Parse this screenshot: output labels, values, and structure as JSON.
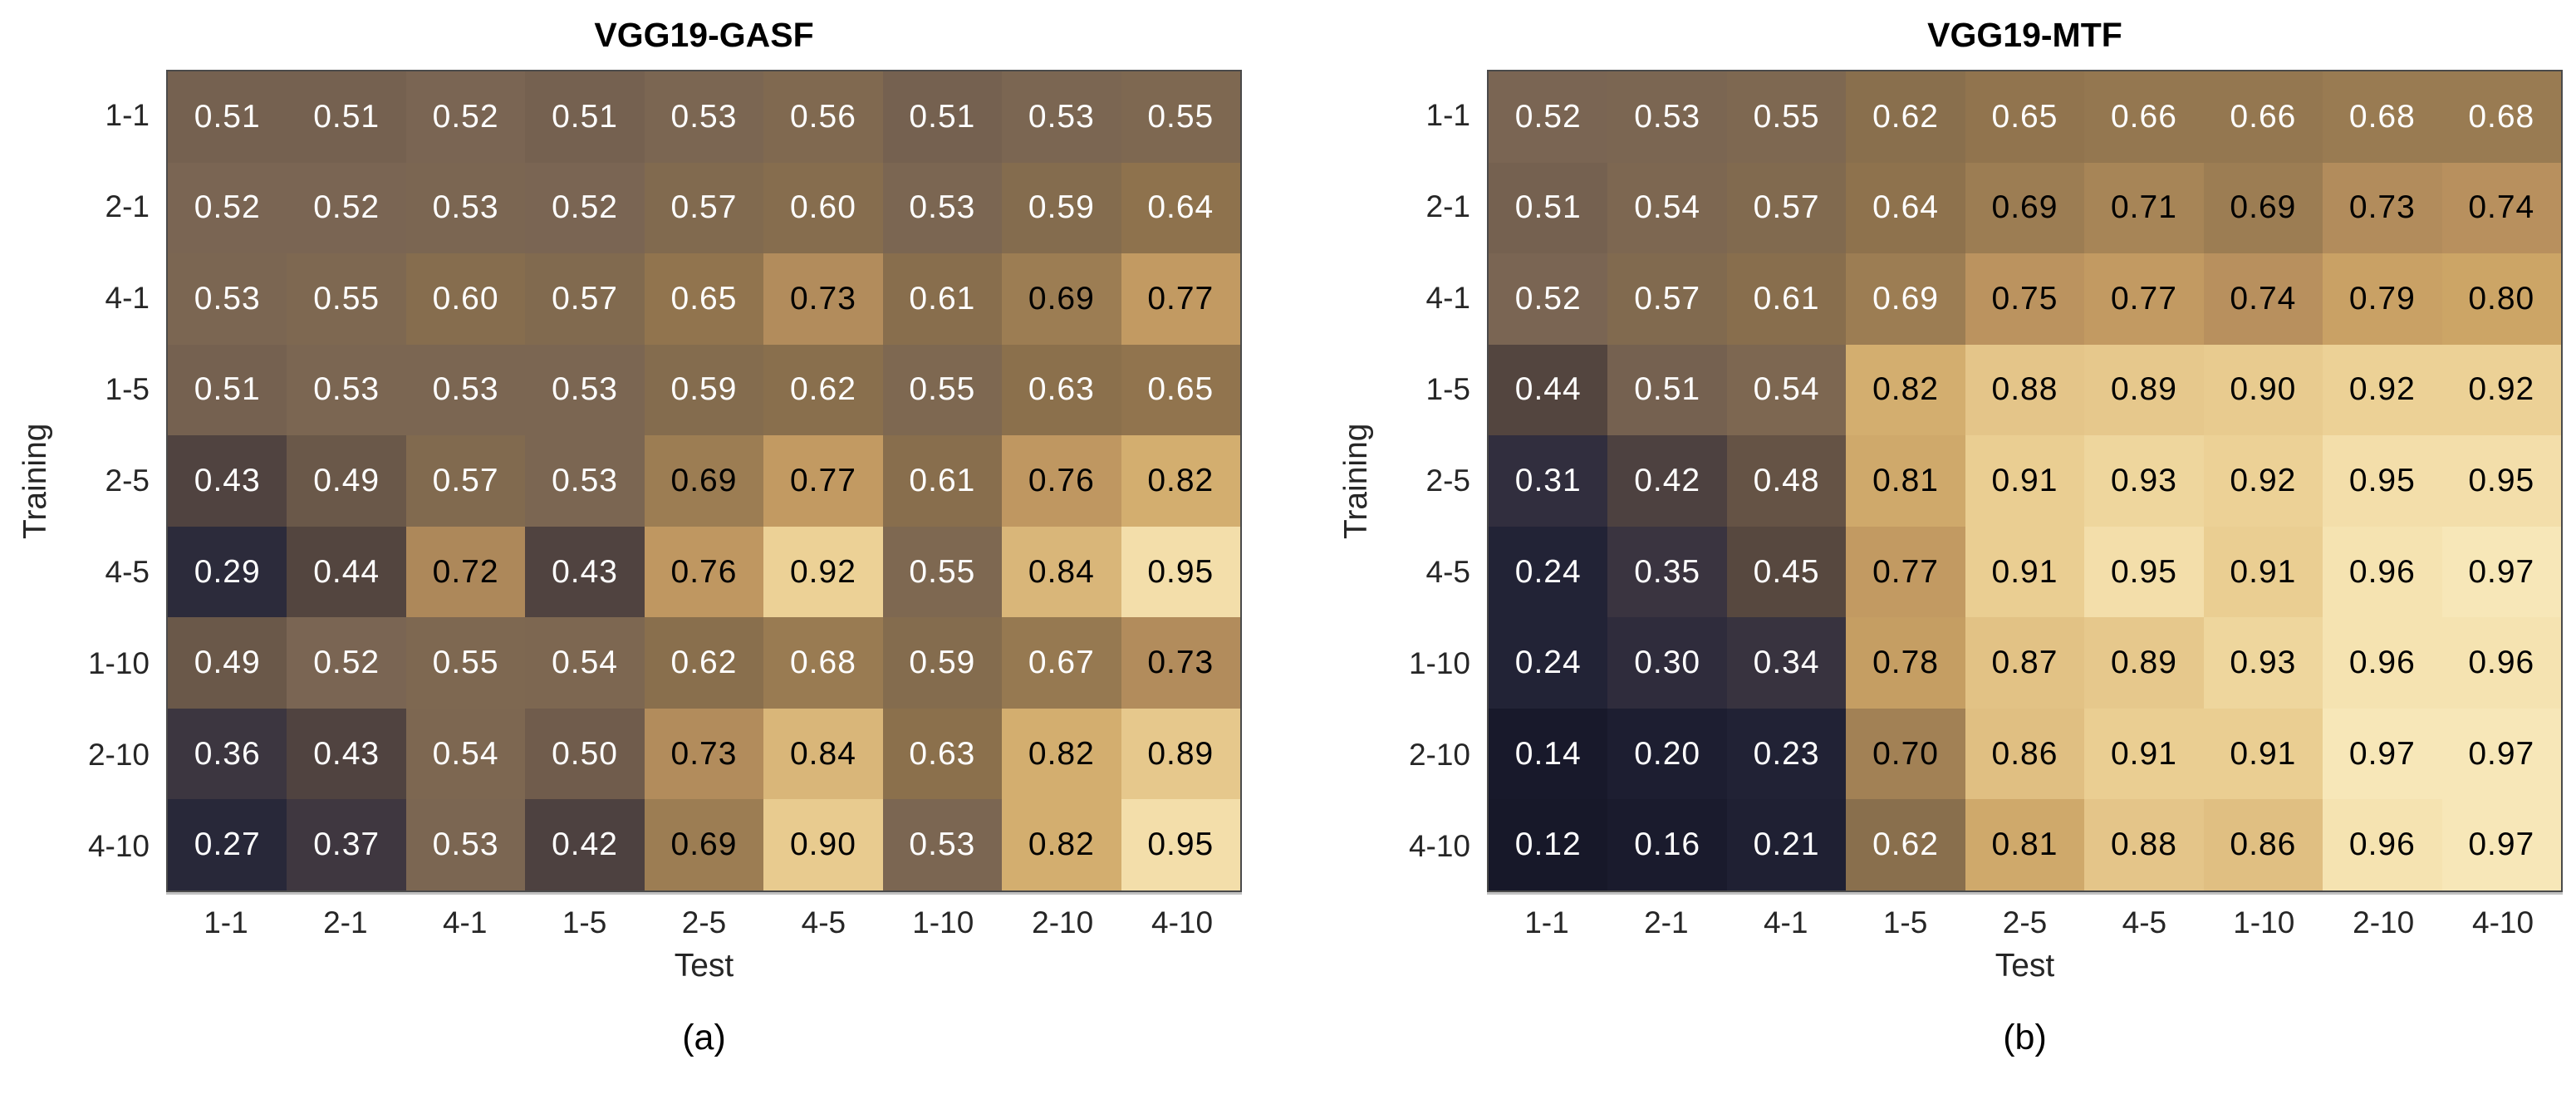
{
  "page": {
    "background": "#ffffff"
  },
  "colors": {
    "axis_text": "#262626",
    "title_text": "#000000",
    "grid_border": "#4a4a4a",
    "cell_text_dark": "#000000",
    "cell_text_light": "#ffffff",
    "colormap_stops": [
      [
        0.0,
        "#171829"
      ],
      [
        0.07,
        "#1b1c2f"
      ],
      [
        0.15,
        "#232437"
      ],
      [
        0.24,
        "#34303f"
      ],
      [
        0.33,
        "#463c41"
      ],
      [
        0.4,
        "#5a4a3e"
      ],
      [
        0.47,
        "#7a6553"
      ],
      [
        0.53,
        "#816a4f"
      ],
      [
        0.6,
        "#8b704c"
      ],
      [
        0.67,
        "#9c7d53"
      ],
      [
        0.73,
        "#b8905e"
      ],
      [
        0.8,
        "#cca566"
      ],
      [
        0.87,
        "#e0bf82"
      ],
      [
        0.94,
        "#ecd195"
      ],
      [
        1.0,
        "#f7e7b8"
      ]
    ]
  },
  "chart_data": [
    {
      "type": "heatmap",
      "title": "VGG19-GASF",
      "caption": "(a)",
      "xlabel": "Test",
      "ylabel": "Training",
      "x_categories": [
        "1-1",
        "2-1",
        "4-1",
        "1-5",
        "2-5",
        "4-5",
        "1-10",
        "2-10",
        "4-10"
      ],
      "y_categories": [
        "1-1",
        "2-1",
        "4-1",
        "1-5",
        "2-5",
        "4-5",
        "1-10",
        "2-10",
        "4-10"
      ],
      "values": [
        [
          0.51,
          0.51,
          0.52,
          0.51,
          0.53,
          0.56,
          0.51,
          0.53,
          0.55
        ],
        [
          0.52,
          0.52,
          0.53,
          0.52,
          0.57,
          0.6,
          0.53,
          0.59,
          0.64
        ],
        [
          0.53,
          0.55,
          0.6,
          0.57,
          0.65,
          0.73,
          0.61,
          0.69,
          0.77
        ],
        [
          0.51,
          0.53,
          0.53,
          0.53,
          0.59,
          0.62,
          0.55,
          0.63,
          0.65
        ],
        [
          0.43,
          0.49,
          0.57,
          0.53,
          0.69,
          0.77,
          0.61,
          0.76,
          0.82
        ],
        [
          0.29,
          0.44,
          0.72,
          0.43,
          0.76,
          0.92,
          0.55,
          0.84,
          0.95
        ],
        [
          0.49,
          0.52,
          0.55,
          0.54,
          0.62,
          0.68,
          0.59,
          0.67,
          0.73
        ],
        [
          0.36,
          0.43,
          0.54,
          0.5,
          0.73,
          0.84,
          0.63,
          0.82,
          0.89
        ],
        [
          0.27,
          0.37,
          0.53,
          0.42,
          0.69,
          0.9,
          0.53,
          0.82,
          0.95
        ]
      ],
      "value_format": "0.00",
      "color_limits": [
        0.12,
        0.97
      ],
      "grid": false,
      "legend": "none",
      "annotation_black_min_value": 0.69,
      "text_color_overrides": []
    },
    {
      "type": "heatmap",
      "title": "VGG19-MTF",
      "caption": "(b)",
      "xlabel": "Test",
      "ylabel": "Training",
      "x_categories": [
        "1-1",
        "2-1",
        "4-1",
        "1-5",
        "2-5",
        "4-5",
        "1-10",
        "2-10",
        "4-10"
      ],
      "y_categories": [
        "1-1",
        "2-1",
        "4-1",
        "1-5",
        "2-5",
        "4-5",
        "1-10",
        "2-10",
        "4-10"
      ],
      "values": [
        [
          0.52,
          0.53,
          0.55,
          0.62,
          0.65,
          0.66,
          0.66,
          0.68,
          0.68
        ],
        [
          0.51,
          0.54,
          0.57,
          0.64,
          0.69,
          0.71,
          0.69,
          0.73,
          0.74
        ],
        [
          0.52,
          0.57,
          0.61,
          0.69,
          0.75,
          0.77,
          0.74,
          0.79,
          0.8
        ],
        [
          0.44,
          0.51,
          0.54,
          0.82,
          0.88,
          0.89,
          0.9,
          0.92,
          0.92
        ],
        [
          0.31,
          0.42,
          0.48,
          0.81,
          0.91,
          0.93,
          0.92,
          0.95,
          0.95
        ],
        [
          0.24,
          0.35,
          0.45,
          0.77,
          0.91,
          0.95,
          0.91,
          0.96,
          0.97
        ],
        [
          0.24,
          0.3,
          0.34,
          0.78,
          0.87,
          0.89,
          0.93,
          0.96,
          0.96
        ],
        [
          0.14,
          0.2,
          0.23,
          0.7,
          0.86,
          0.91,
          0.91,
          0.97,
          0.97
        ],
        [
          0.12,
          0.16,
          0.21,
          0.62,
          0.81,
          0.88,
          0.86,
          0.96,
          0.97
        ]
      ],
      "value_format": "0.00",
      "color_limits": [
        0.12,
        0.97
      ],
      "grid": false,
      "legend": "none",
      "annotation_black_min_value": 0.69,
      "text_color_overrides": [
        {
          "row": "4-1",
          "col": "1-5",
          "color": "light"
        }
      ]
    }
  ]
}
